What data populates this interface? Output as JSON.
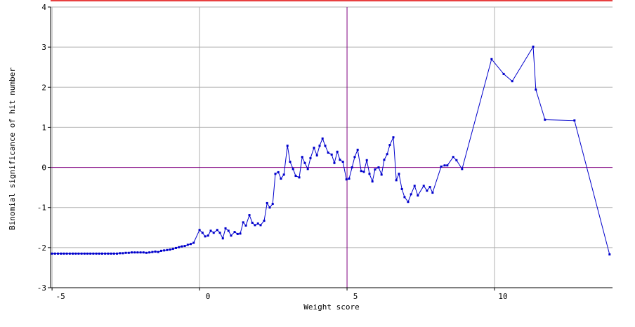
{
  "chart_data": {
    "type": "line",
    "x_label": "Weight score",
    "y_label": "Binomial significance of hit number",
    "xlim": [
      -5.05,
      14.0
    ],
    "ylim": [
      -3,
      4
    ],
    "xticks": [
      -5,
      0,
      5,
      10
    ],
    "yticks": [
      -3,
      -2,
      -1,
      0,
      1,
      2,
      3,
      4
    ],
    "grid": true,
    "reference_lines": {
      "x": 5,
      "y": 0,
      "color": "#800080"
    },
    "x": [
      -5.0,
      -4.9,
      -4.8,
      -4.7,
      -4.6,
      -4.5,
      -4.4,
      -4.3,
      -4.2,
      -4.1,
      -4.0,
      -3.9,
      -3.8,
      -3.7,
      -3.6,
      -3.5,
      -3.4,
      -3.3,
      -3.2,
      -3.1,
      -3.0,
      -2.9,
      -2.8,
      -2.7,
      -2.6,
      -2.5,
      -2.4,
      -2.3,
      -2.2,
      -2.1,
      -2.0,
      -1.9,
      -1.8,
      -1.7,
      -1.6,
      -1.5,
      -1.4,
      -1.3,
      -1.2,
      -1.1,
      -1.0,
      -0.9,
      -0.8,
      -0.7,
      -0.6,
      -0.5,
      -0.4,
      -0.3,
      -0.2,
      0.0,
      0.1,
      0.19,
      0.29,
      0.38,
      0.48,
      0.6,
      0.69,
      0.79,
      0.88,
      0.98,
      1.07,
      1.19,
      1.29,
      1.38,
      1.48,
      1.57,
      1.69,
      1.79,
      1.88,
      1.98,
      2.07,
      2.19,
      2.29,
      2.38,
      2.48,
      2.57,
      2.67,
      2.76,
      2.86,
      2.98,
      3.07,
      3.17,
      3.26,
      3.38,
      3.48,
      3.57,
      3.67,
      3.76,
      3.88,
      3.98,
      4.07,
      4.17,
      4.26,
      4.36,
      4.48,
      4.57,
      4.67,
      4.76,
      4.86,
      4.98,
      5.07,
      5.17,
      5.26,
      5.36,
      5.48,
      5.57,
      5.67,
      5.76,
      5.86,
      5.95,
      6.07,
      6.17,
      6.26,
      6.36,
      6.45,
      6.57,
      6.67,
      6.76,
      6.86,
      6.95,
      7.07,
      7.17,
      7.29,
      7.4,
      7.6,
      7.71,
      7.81,
      7.9,
      8.19,
      8.31,
      8.4,
      8.6,
      8.71,
      8.9,
      9.9,
      10.31,
      10.6,
      11.31,
      11.4,
      11.71,
      12.71,
      13.9
    ],
    "series": [
      {
        "name": "Binomial significance",
        "color": "#0000cc",
        "values": [
          -2.15,
          -2.15,
          -2.15,
          -2.15,
          -2.15,
          -2.15,
          -2.15,
          -2.15,
          -2.15,
          -2.15,
          -2.15,
          -2.15,
          -2.15,
          -2.15,
          -2.15,
          -2.15,
          -2.15,
          -2.15,
          -2.15,
          -2.15,
          -2.15,
          -2.15,
          -2.15,
          -2.14,
          -2.14,
          -2.13,
          -2.13,
          -2.12,
          -2.12,
          -2.12,
          -2.12,
          -2.12,
          -2.13,
          -2.12,
          -2.11,
          -2.1,
          -2.11,
          -2.08,
          -2.07,
          -2.06,
          -2.05,
          -2.03,
          -2.01,
          -1.99,
          -1.97,
          -1.96,
          -1.93,
          -1.91,
          -1.88,
          -1.56,
          -1.63,
          -1.72,
          -1.7,
          -1.58,
          -1.63,
          -1.56,
          -1.63,
          -1.77,
          -1.52,
          -1.58,
          -1.7,
          -1.61,
          -1.66,
          -1.65,
          -1.37,
          -1.45,
          -1.19,
          -1.38,
          -1.44,
          -1.4,
          -1.44,
          -1.33,
          -0.89,
          -1.0,
          -0.91,
          -0.16,
          -0.12,
          -0.28,
          -0.18,
          0.54,
          0.14,
          -0.04,
          -0.21,
          -0.25,
          0.26,
          0.11,
          -0.04,
          0.23,
          0.49,
          0.3,
          0.54,
          0.72,
          0.54,
          0.37,
          0.32,
          0.11,
          0.39,
          0.19,
          0.14,
          -0.3,
          -0.28,
          0.0,
          0.26,
          0.44,
          -0.09,
          -0.11,
          0.18,
          -0.16,
          -0.35,
          -0.05,
          0.0,
          -0.18,
          0.19,
          0.33,
          0.56,
          0.75,
          -0.32,
          -0.16,
          -0.54,
          -0.74,
          -0.86,
          -0.67,
          -0.46,
          -0.7,
          -0.46,
          -0.58,
          -0.49,
          -0.63,
          0.02,
          0.05,
          0.05,
          0.26,
          0.18,
          -0.04,
          2.7,
          2.33,
          2.15,
          3.01,
          1.94,
          1.19,
          1.17,
          -2.17
        ]
      }
    ]
  }
}
